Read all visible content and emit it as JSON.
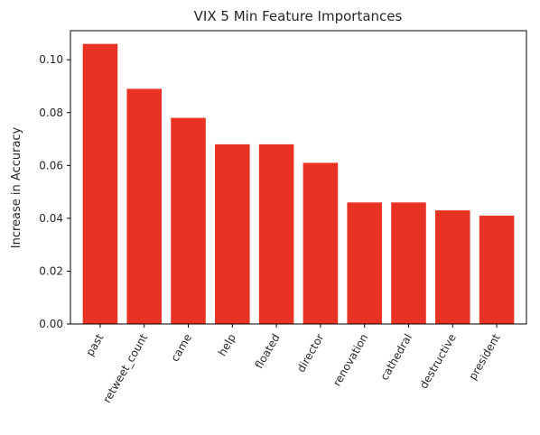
{
  "chart_data": {
    "type": "bar",
    "title": "VIX 5 Min Feature Importances",
    "xlabel": "",
    "ylabel": "Increase in Accuracy",
    "categories": [
      "past",
      "retweet_count",
      "came",
      "help",
      "floated",
      "director",
      "renovation",
      "cathedral",
      "destructive",
      "president"
    ],
    "values": [
      0.106,
      0.089,
      0.078,
      0.068,
      0.068,
      0.061,
      0.046,
      0.046,
      0.043,
      0.041
    ],
    "ylim": [
      0,
      0.111
    ],
    "yticks": [
      "0.00",
      "0.02",
      "0.04",
      "0.06",
      "0.08",
      "0.10"
    ],
    "ytick_values": [
      0,
      0.02,
      0.04,
      0.06,
      0.08,
      0.1
    ],
    "bar_color": "#e83324",
    "grid": false,
    "legend": "none"
  }
}
